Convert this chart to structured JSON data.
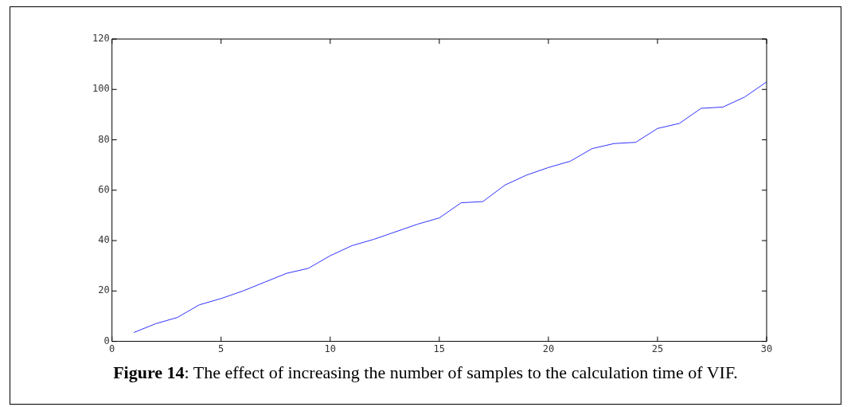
{
  "chart_data": {
    "type": "line",
    "x": [
      1,
      2,
      3,
      4,
      5,
      6,
      7,
      8,
      9,
      10,
      11,
      12,
      13,
      14,
      15,
      16,
      17,
      18,
      19,
      20,
      21,
      22,
      23,
      24,
      25,
      26,
      27,
      28,
      29,
      30
    ],
    "series": [
      {
        "color": "#3333ff",
        "values": [
          3.5,
          7,
          9.5,
          14.5,
          17,
          20,
          23.5,
          27,
          29,
          34,
          38,
          40.5,
          43.5,
          46.5,
          49,
          55,
          55.5,
          62,
          66,
          69,
          71.5,
          76.5,
          78.5,
          79,
          84.5,
          86.5,
          92.5,
          93,
          97,
          103
        ]
      }
    ],
    "xlim": [
      0,
      30
    ],
    "xticks": [
      0,
      5,
      10,
      15,
      20,
      25,
      30
    ],
    "ylim": [
      0,
      120
    ],
    "yticks": [
      0,
      20,
      40,
      60,
      80,
      100,
      120
    ],
    "grid": false,
    "legend": false,
    "marker": "none",
    "line_style": "solid",
    "annotations": [
      "Figure 14: The effect of increasing the number of samples to the calculation time of VIF."
    ]
  }
}
